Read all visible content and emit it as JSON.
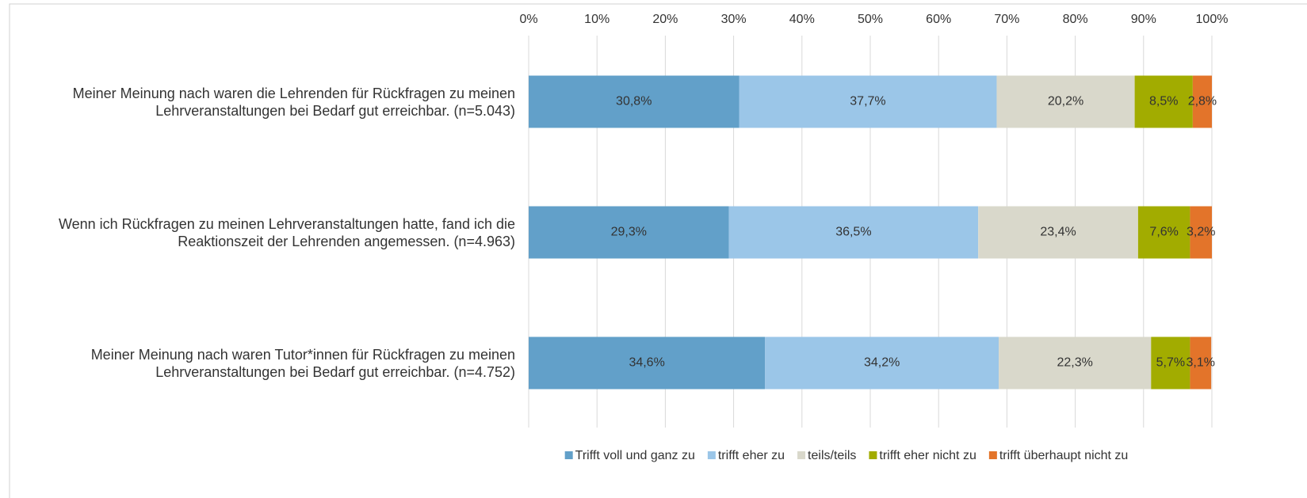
{
  "chart_data": {
    "type": "stacked_barh",
    "categories": [
      "Meiner Meinung nach waren die Lehrenden für Rückfragen zu meinen Lehrveranstaltungen bei Bedarf gut erreichbar. (n=5.043)",
      "Wenn ich Rückfragen zu meinen Lehrveranstaltungen hatte, fand ich die Reaktionszeit der Lehrenden angemessen. (n=4.963)",
      "Meiner Meinung nach waren Tutor*innen für Rückfragen zu meinen Lehrveranstaltungen bei Bedarf gut erreichbar. (n=4.752)"
    ],
    "series": [
      {
        "name": "Trifft voll und ganz zu",
        "color": "#62a0c9",
        "values": [
          30.8,
          29.3,
          34.6
        ],
        "value_labels": [
          "30,8%",
          "29,3%",
          "34,6%"
        ]
      },
      {
        "name": "trifft eher zu",
        "color": "#9bc6e8",
        "values": [
          37.7,
          36.5,
          34.2
        ],
        "value_labels": [
          "37,7%",
          "36,5%",
          "34,2%"
        ]
      },
      {
        "name": "teils/teils",
        "color": "#d9d8cb",
        "values": [
          20.2,
          23.4,
          22.3
        ],
        "value_labels": [
          "20,2%",
          "23,4%",
          "22,3%"
        ]
      },
      {
        "name": "trifft eher nicht zu",
        "color": "#a2ac00",
        "values": [
          8.5,
          7.6,
          5.7
        ],
        "value_labels": [
          "8,5%",
          "7,6%",
          "5,7%"
        ]
      },
      {
        "name": "trifft überhaupt nicht zu",
        "color": "#e3742a",
        "values": [
          2.8,
          3.2,
          3.1
        ],
        "value_labels": [
          "2,8%",
          "3,2%",
          "3,1%"
        ]
      }
    ],
    "xlim": [
      0,
      100
    ],
    "xticks": [
      {
        "value": 0,
        "label": "0%"
      },
      {
        "value": 10,
        "label": "10%"
      },
      {
        "value": 20,
        "label": "20%"
      },
      {
        "value": 30,
        "label": "30%"
      },
      {
        "value": 40,
        "label": "40%"
      },
      {
        "value": 50,
        "label": "50%"
      },
      {
        "value": 60,
        "label": "60%"
      },
      {
        "value": 70,
        "label": "70%"
      },
      {
        "value": 80,
        "label": "80%"
      },
      {
        "value": 90,
        "label": "90%"
      },
      {
        "value": 100,
        "label": "100%"
      }
    ],
    "grid": true,
    "legend": "bottom"
  }
}
